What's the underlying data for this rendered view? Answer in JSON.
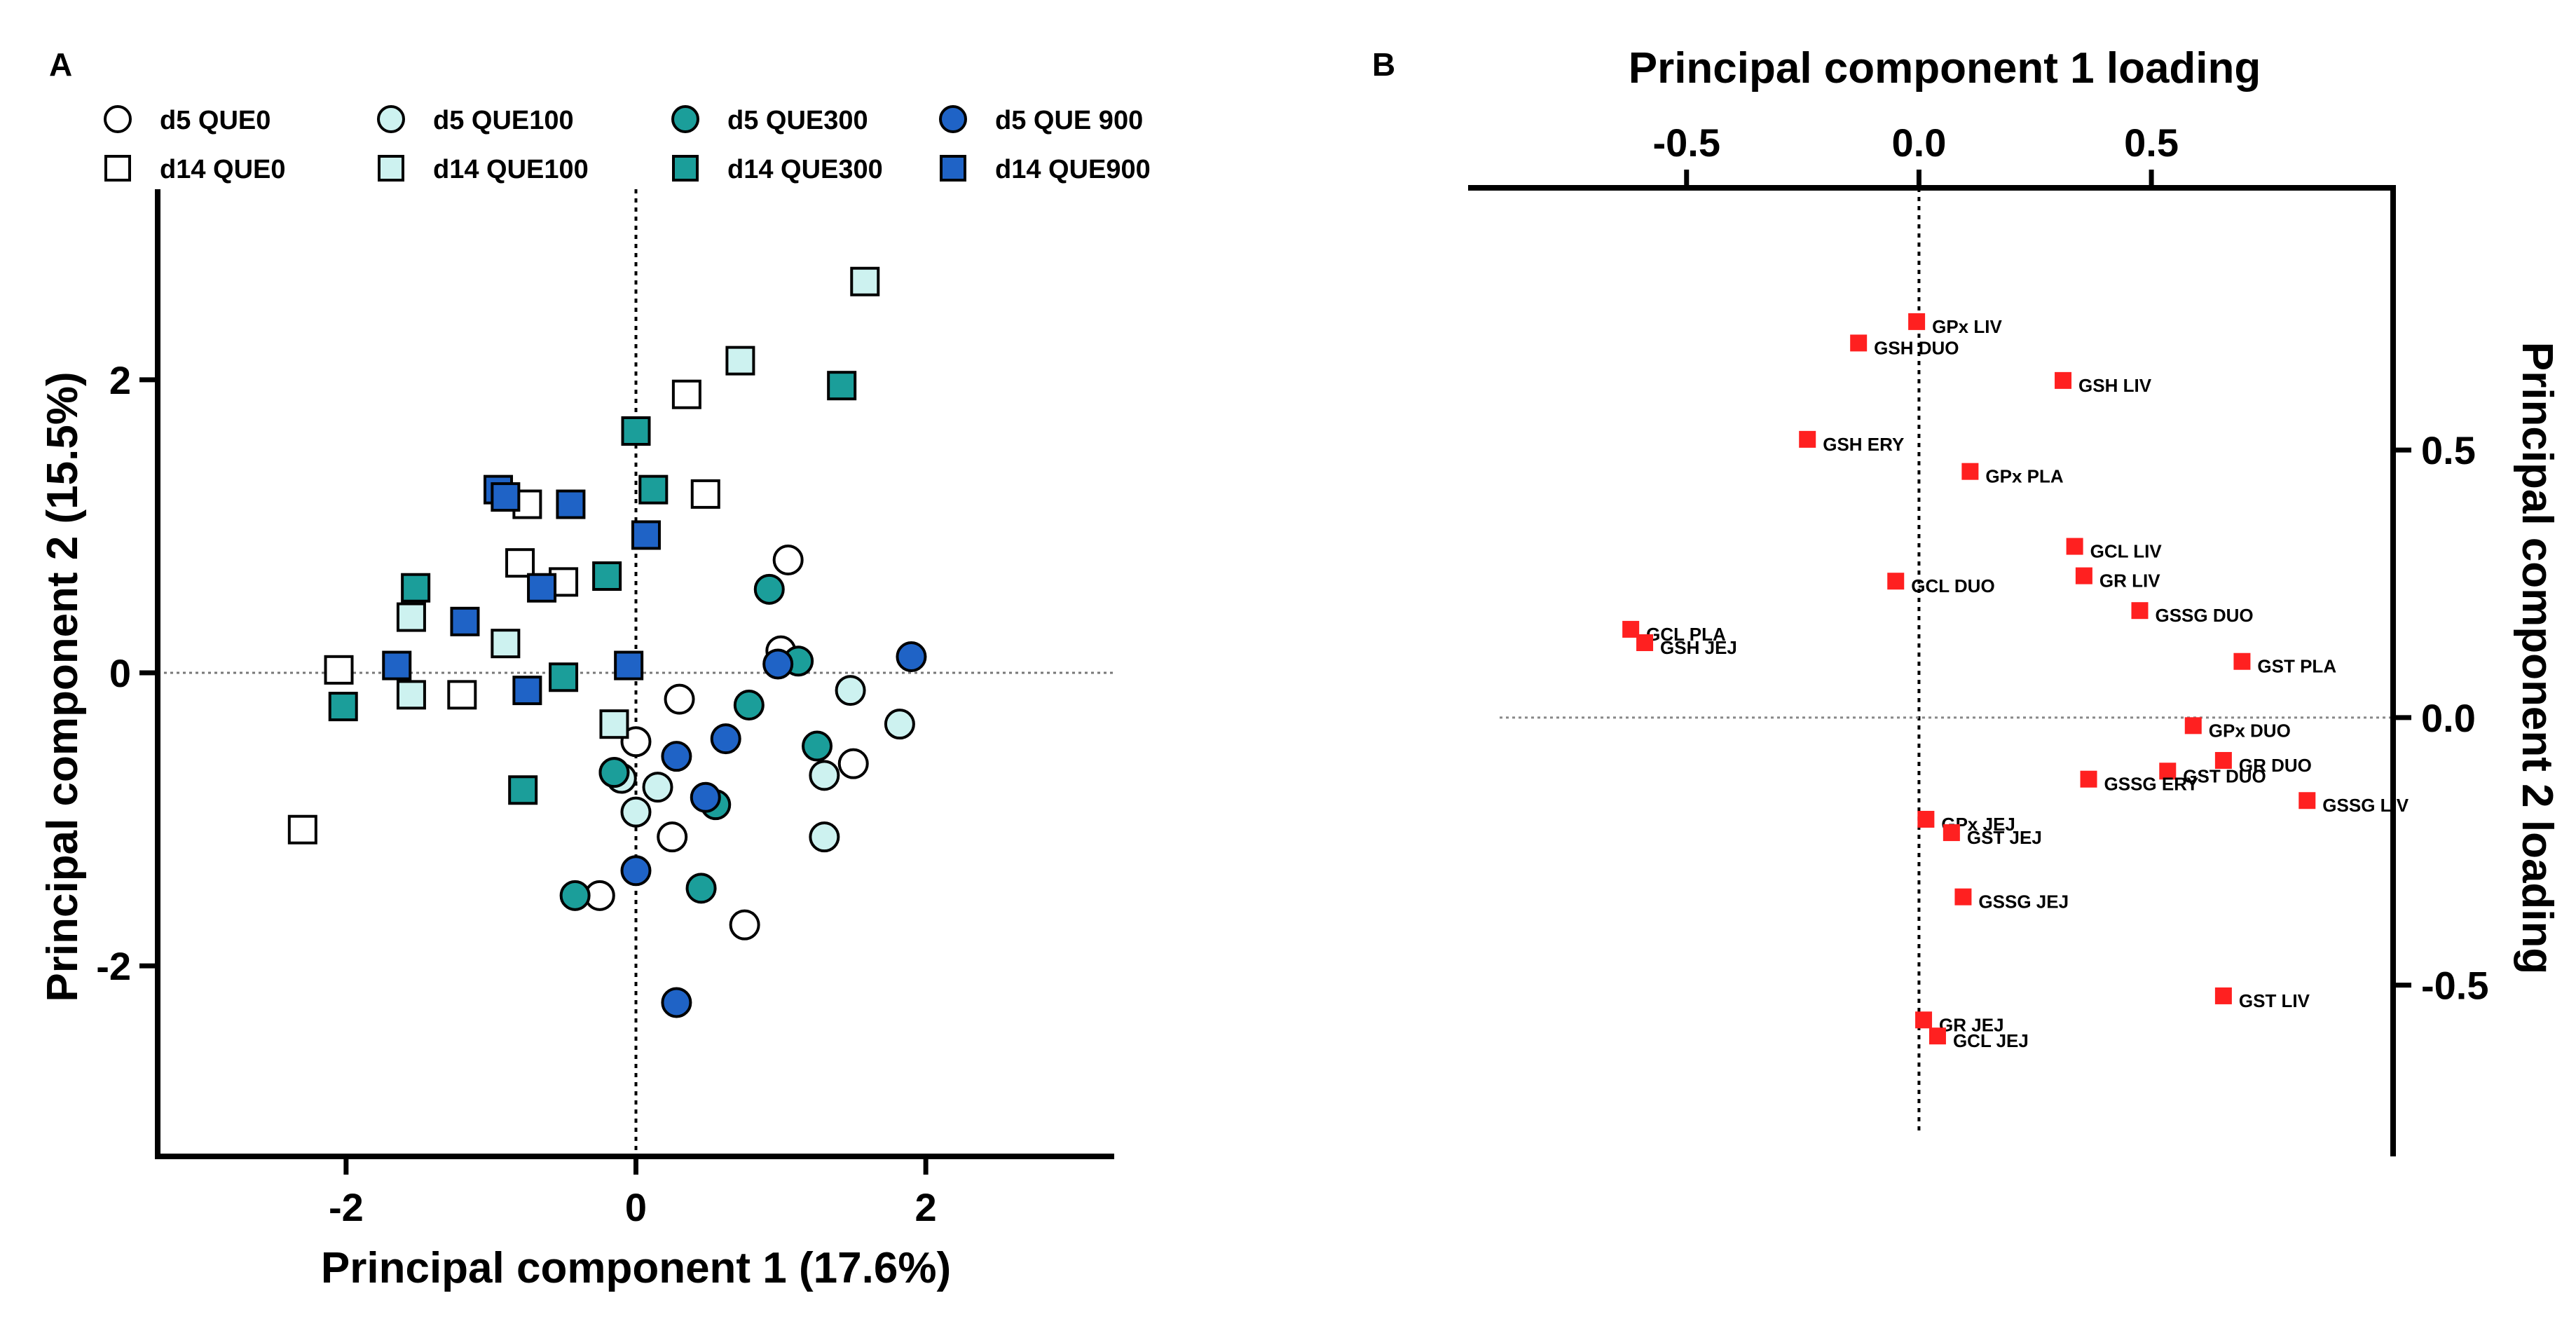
{
  "chart_data": [
    {
      "panel": "A",
      "type": "scatter",
      "xlabel": "Principal component 1 (17.6%)",
      "ylabel": "Principal component 2 (15.5%)",
      "xlim": [
        -3.3,
        3.3
      ],
      "ylim": [
        -3.3,
        3.3
      ],
      "xticks": [
        -2,
        0,
        2
      ],
      "yticks": [
        -2,
        0,
        2
      ],
      "xtick_labels": [
        "-2",
        "0",
        "2"
      ],
      "ytick_labels": [
        "-2",
        "0",
        "2"
      ],
      "reference_lines": [
        "x = 0",
        "y = 0"
      ],
      "legend_position": "top",
      "series": [
        {
          "name": "d5 QUE0",
          "marker": "circle",
          "color": "#ffffff",
          "points": [
            [
              1.05,
              0.77
            ],
            [
              0.3,
              -0.18
            ],
            [
              0,
              -0.47
            ],
            [
              -0.15,
              -0.68
            ],
            [
              0.25,
              -1.12
            ],
            [
              -0.25,
              -1.52
            ],
            [
              0.75,
              -1.72
            ],
            [
              1,
              0.15
            ],
            [
              1.5,
              -0.62
            ]
          ]
        },
        {
          "name": "d5 QUE100",
          "marker": "circle",
          "color": "#cdf2f0",
          "points": [
            [
              1.48,
              -0.12
            ],
            [
              1.82,
              -0.35
            ],
            [
              1.3,
              -0.7
            ],
            [
              1.3,
              -1.12
            ],
            [
              0.15,
              -0.78
            ],
            [
              0,
              -0.95
            ],
            [
              -0.1,
              -0.72
            ]
          ]
        },
        {
          "name": "d5 QUE300",
          "marker": "circle",
          "color": "#1b9e9a",
          "points": [
            [
              0.92,
              0.57
            ],
            [
              1.12,
              0.08
            ],
            [
              0.78,
              -0.22
            ],
            [
              1.25,
              -0.5
            ],
            [
              -0.15,
              -0.68
            ],
            [
              0.55,
              -0.9
            ],
            [
              0.45,
              -1.47
            ],
            [
              -0.42,
              -1.52
            ]
          ]
        },
        {
          "name": "d5 QUE 900",
          "marker": "circle",
          "color": "#1f63c6",
          "points": [
            [
              1.9,
              0.11
            ],
            [
              0.98,
              0.06
            ],
            [
              0.62,
              -0.45
            ],
            [
              0.28,
              -0.57
            ],
            [
              0.48,
              -0.85
            ],
            [
              0,
              -1.35
            ],
            [
              0.28,
              -2.25
            ]
          ]
        },
        {
          "name": "d14 QUE0",
          "marker": "square",
          "color": "#ffffff",
          "points": [
            [
              0.35,
              1.9
            ],
            [
              0.48,
              1.22
            ],
            [
              -0.75,
              1.15
            ],
            [
              -0.5,
              0.62
            ],
            [
              -0.8,
              0.75
            ],
            [
              -2.05,
              0.02
            ],
            [
              -1.2,
              -0.15
            ],
            [
              -2.3,
              -1.07
            ]
          ]
        },
        {
          "name": "d14 QUE100",
          "marker": "square",
          "color": "#cdf2f0",
          "points": [
            [
              1.58,
              2.67
            ],
            [
              0.72,
              2.13
            ],
            [
              -1.55,
              0.38
            ],
            [
              -0.9,
              0.2
            ],
            [
              -1.55,
              -0.15
            ],
            [
              -0.15,
              -0.35
            ]
          ]
        },
        {
          "name": "d14 QUE300",
          "marker": "square",
          "color": "#1b9e9a",
          "points": [
            [
              1.42,
              1.96
            ],
            [
              0,
              1.65
            ],
            [
              0.12,
              1.25
            ],
            [
              -0.2,
              0.66
            ],
            [
              -1.52,
              0.58
            ],
            [
              -0.5,
              -0.03
            ],
            [
              -2.02,
              -0.23
            ],
            [
              -0.78,
              -0.8
            ]
          ]
        },
        {
          "name": "d14 QUE900",
          "marker": "square",
          "color": "#1f63c6",
          "points": [
            [
              -0.95,
              1.25
            ],
            [
              -0.9,
              1.2
            ],
            [
              -0.45,
              1.15
            ],
            [
              0.07,
              0.94
            ],
            [
              -0.65,
              0.58
            ],
            [
              -1.18,
              0.35
            ],
            [
              -1.65,
              0.05
            ],
            [
              -0.05,
              0.05
            ],
            [
              -0.75,
              -0.12
            ]
          ]
        }
      ]
    },
    {
      "panel": "B",
      "type": "scatter",
      "xlabel": "Principal component 1 loading",
      "ylabel": "Principal component 2 loading",
      "xaxis_position": "top",
      "yaxis_position": "right",
      "xlim": [
        -0.97,
        1.02
      ],
      "ylim": [
        -0.82,
        0.99
      ],
      "xticks": [
        -0.5,
        0,
        0.5
      ],
      "yticks": [
        -0.5,
        0,
        0.5
      ],
      "xtick_labels": [
        "-0.5",
        "0.0",
        "0.5"
      ],
      "ytick_labels": [
        "-0.5",
        "0.0",
        "0.5"
      ],
      "reference_lines": [
        "x = 0",
        "y = 0"
      ],
      "marker_color": "#ff2020",
      "points": [
        {
          "label": "GPx LIV",
          "x": -0.005,
          "y": 0.74
        },
        {
          "label": "GSH DUO",
          "x": -0.13,
          "y": 0.7
        },
        {
          "label": "GSH LIV",
          "x": 0.31,
          "y": 0.63
        },
        {
          "label": "GSH ERY",
          "x": -0.24,
          "y": 0.52
        },
        {
          "label": "GPx PLA",
          "x": 0.11,
          "y": 0.46
        },
        {
          "label": "GCL LIV",
          "x": 0.335,
          "y": 0.32
        },
        {
          "label": "GR LIV",
          "x": 0.355,
          "y": 0.265
        },
        {
          "label": "GCL DUO",
          "x": -0.05,
          "y": 0.255
        },
        {
          "label": "GSSG DUO",
          "x": 0.475,
          "y": 0.2
        },
        {
          "label": "GCL PLA",
          "x": -0.62,
          "y": 0.165
        },
        {
          "label": "GSH JEJ",
          "x": -0.59,
          "y": 0.14
        },
        {
          "label": "GST PLA",
          "x": 0.695,
          "y": 0.105
        },
        {
          "label": "GPx DUO",
          "x": 0.59,
          "y": -0.015
        },
        {
          "label": "GR DUO",
          "x": 0.655,
          "y": -0.08
        },
        {
          "label": "GST DUO",
          "x": 0.535,
          "y": -0.1
        },
        {
          "label": "GSSG ERY",
          "x": 0.365,
          "y": -0.115
        },
        {
          "label": "GSSG LIV",
          "x": 0.835,
          "y": -0.155
        },
        {
          "label": "GPx JEJ",
          "x": 0.015,
          "y": -0.19
        },
        {
          "label": "GST JEJ",
          "x": 0.07,
          "y": -0.215
        },
        {
          "label": "GSSG JEJ",
          "x": 0.095,
          "y": -0.335
        },
        {
          "label": "GST LIV",
          "x": 0.655,
          "y": -0.52
        },
        {
          "label": "GR JEJ",
          "x": 0.01,
          "y": -0.565
        },
        {
          "label": "GCL JEJ",
          "x": 0.04,
          "y": -0.595
        }
      ]
    }
  ]
}
